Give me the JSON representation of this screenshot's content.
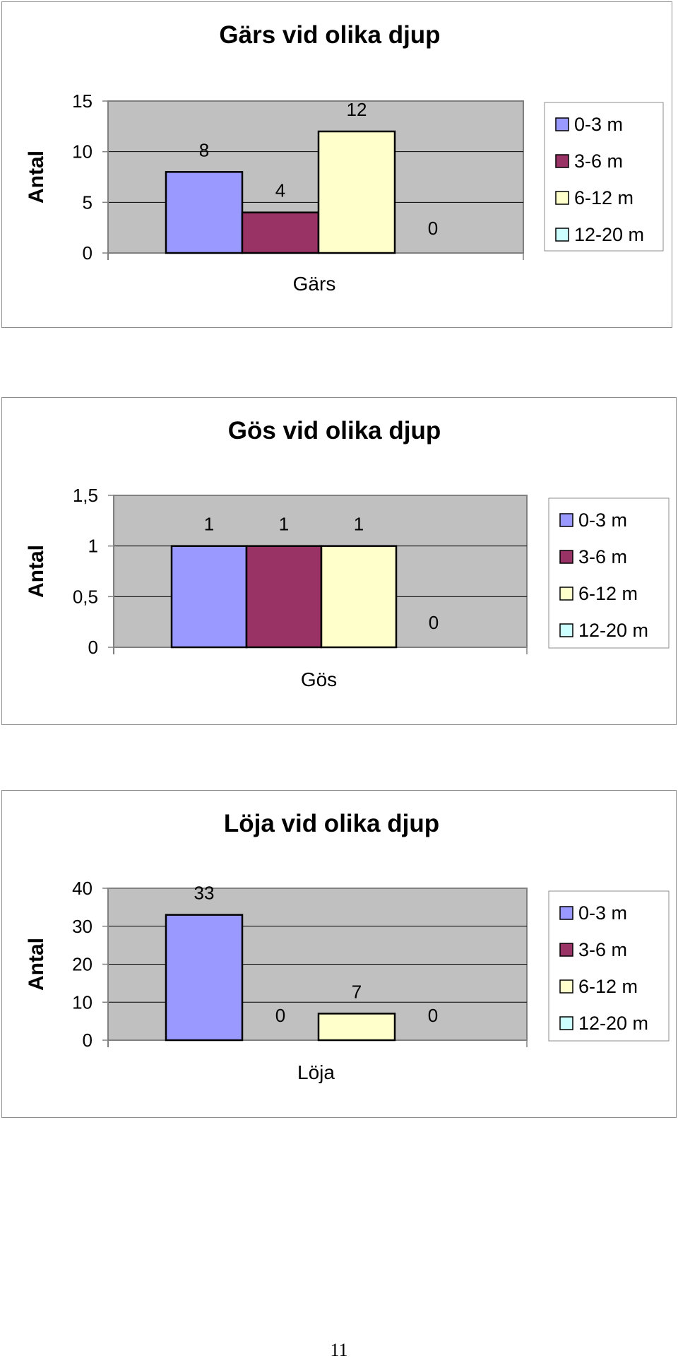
{
  "page": {
    "number": "11"
  },
  "chart_data": [
    {
      "type": "bar",
      "title": "Gärs vid olika djup",
      "ylabel": "Antal",
      "xlabel": "Gärs",
      "yticks": [
        "0",
        "5",
        "10",
        "15"
      ],
      "ylim": [
        0,
        15
      ],
      "grid": true,
      "legend": "right",
      "series": [
        {
          "name": "0-3 m",
          "value": 8,
          "label": "8",
          "color": "#9999ff"
        },
        {
          "name": "3-6 m",
          "value": 4,
          "label": "4",
          "color": "#993366"
        },
        {
          "name": "6-12 m",
          "value": 12,
          "label": "12",
          "color": "#ffffcc"
        },
        {
          "name": "12-20 m",
          "value": 0,
          "label": "0",
          "color": "#ccffff"
        }
      ]
    },
    {
      "type": "bar",
      "title": "Gös vid olika djup",
      "ylabel": "Antal",
      "xlabel": "Gös",
      "yticks": [
        "0",
        "0,5",
        "1",
        "1,5"
      ],
      "ylim": [
        0,
        1.5
      ],
      "grid": true,
      "legend": "right",
      "series": [
        {
          "name": "0-3 m",
          "value": 1,
          "label": "1",
          "color": "#9999ff"
        },
        {
          "name": "3-6 m",
          "value": 1,
          "label": "1",
          "color": "#993366"
        },
        {
          "name": "6-12 m",
          "value": 1,
          "label": "1",
          "color": "#ffffcc"
        },
        {
          "name": "12-20 m",
          "value": 0,
          "label": "0",
          "color": "#ccffff"
        }
      ]
    },
    {
      "type": "bar",
      "title": "Löja vid olika djup",
      "ylabel": "Antal",
      "xlabel": "Löja",
      "yticks": [
        "0",
        "10",
        "20",
        "30",
        "40"
      ],
      "ylim": [
        0,
        40
      ],
      "grid": true,
      "legend": "right",
      "series": [
        {
          "name": "0-3 m",
          "value": 33,
          "label": "33",
          "color": "#9999ff"
        },
        {
          "name": "3-6 m",
          "value": 0,
          "label": "0",
          "color": "#993366"
        },
        {
          "name": "6-12 m",
          "value": 7,
          "label": "7",
          "color": "#ffffcc"
        },
        {
          "name": "12-20 m",
          "value": 0,
          "label": "0",
          "color": "#ccffff"
        }
      ]
    }
  ]
}
